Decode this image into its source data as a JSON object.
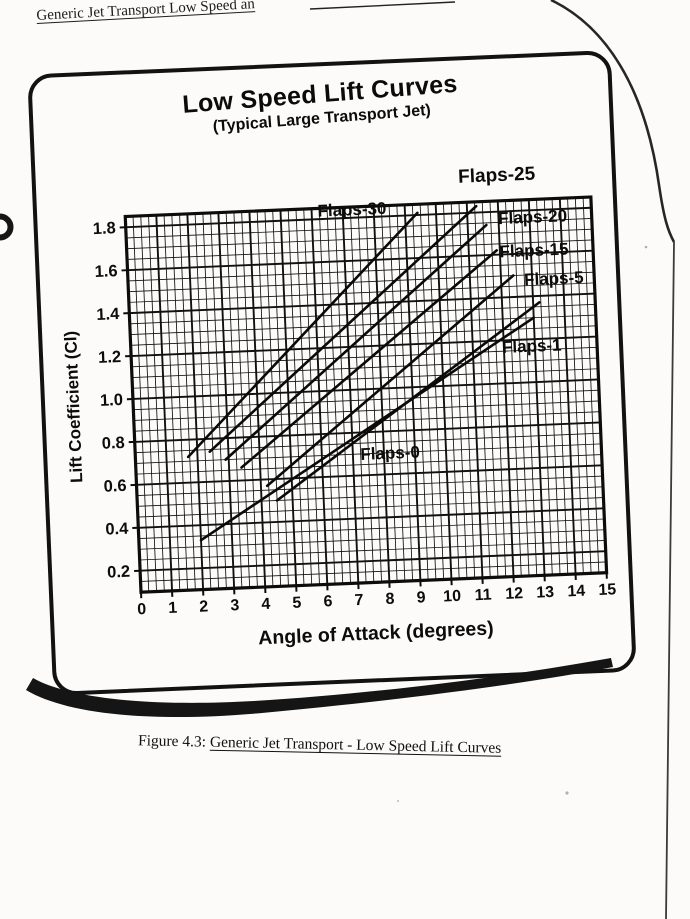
{
  "page": {
    "running_header": "Generic Jet Transport Low Speed an",
    "figure_caption": {
      "prefix": "Figure 4.3: ",
      "underlined": "Generic Jet Transport - Low Speed Lift Curves"
    }
  },
  "chart_data": {
    "type": "line",
    "title": "Low Speed Lift Curves",
    "subtitle": "(Typical Large Transport Jet)",
    "xlabel": "Angle of Attack (degrees)",
    "ylabel": "Lift Coefficient (Cl)",
    "xlim": [
      0,
      15
    ],
    "ylim_drawn": [
      0.1,
      1.85
    ],
    "x_ticks": [
      0,
      1,
      2,
      3,
      4,
      5,
      6,
      7,
      8,
      9,
      10,
      11,
      12,
      13,
      14,
      15
    ],
    "y_ticks": [
      0.2,
      0.4,
      0.6,
      0.8,
      1.0,
      1.2,
      1.4,
      1.6,
      1.8
    ],
    "x_minor_step": 0.25,
    "y_minor_step": 0.05,
    "grid": true,
    "legend_position": "labels adjacent to curves",
    "series": [
      {
        "name": "Flaps-30",
        "points": [
          [
            1.7,
            0.72
          ],
          [
            9.4,
            1.81
          ]
        ]
      },
      {
        "name": "Flaps-25",
        "points": [
          [
            2.4,
            0.74
          ],
          [
            11.3,
            1.83
          ]
        ]
      },
      {
        "name": "Flaps-20",
        "points": [
          [
            2.9,
            0.7
          ],
          [
            11.6,
            1.74
          ]
        ]
      },
      {
        "name": "Flaps-15",
        "points": [
          [
            3.4,
            0.66
          ],
          [
            11.9,
            1.62
          ]
        ]
      },
      {
        "name": "Flaps-5",
        "points": [
          [
            4.2,
            0.57
          ],
          [
            12.4,
            1.5
          ]
        ]
      },
      {
        "name": "Flaps-1",
        "points": [
          [
            4.5,
            0.5
          ],
          [
            13.2,
            1.37
          ]
        ]
      },
      {
        "name": "Flaps-0",
        "points": [
          [
            2.0,
            0.33
          ],
          [
            13.0,
            1.3
          ]
        ]
      }
    ],
    "curve_labels": [
      {
        "text": "Flaps-25",
        "x": 12.0,
        "y": 1.97,
        "size": 19
      },
      {
        "text": "Flaps-30",
        "x": 7.3,
        "y": 1.84,
        "size": 17
      },
      {
        "text": "Flaps-20",
        "x": 13.1,
        "y": 1.77,
        "size": 17
      },
      {
        "text": "Flaps-15",
        "x": 13.1,
        "y": 1.615,
        "size": 17
      },
      {
        "text": "Flaps-5",
        "x": 13.7,
        "y": 1.48,
        "size": 17
      },
      {
        "text": "Flaps-1",
        "x": 12.9,
        "y": 1.17,
        "size": 17
      },
      {
        "text": "Flaps-0",
        "x": 8.2,
        "y": 0.7,
        "size": 17
      }
    ]
  }
}
